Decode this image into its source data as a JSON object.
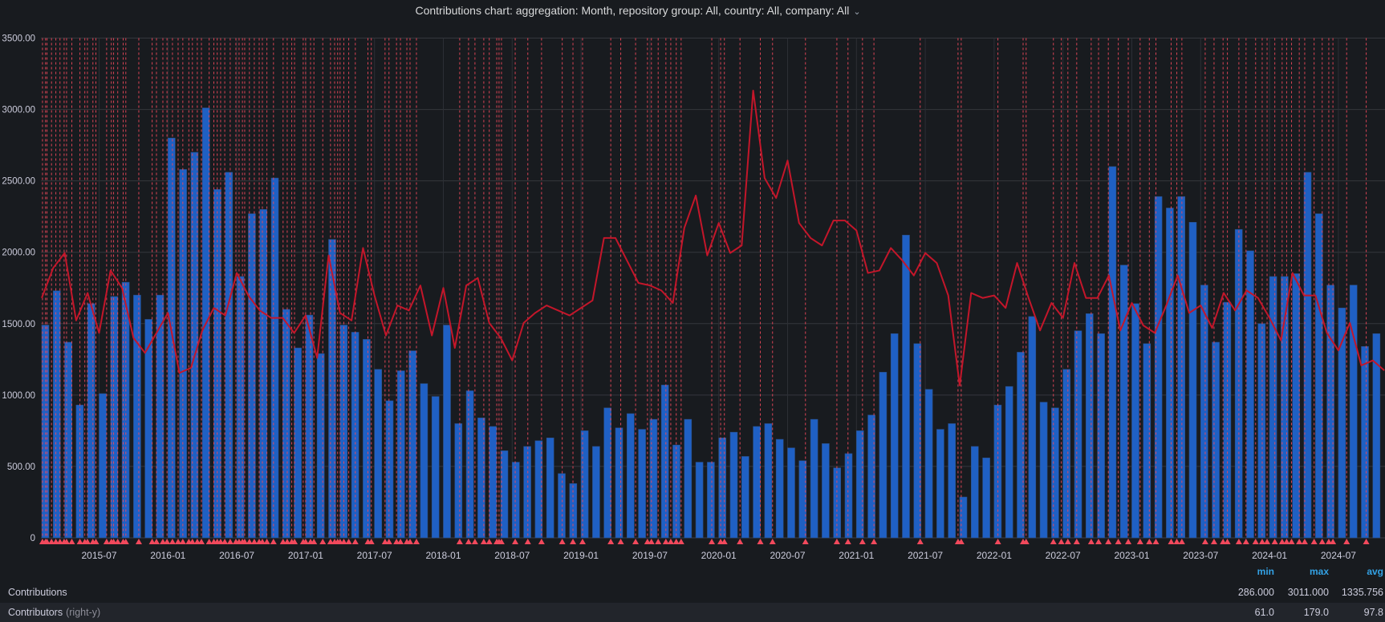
{
  "panel": {
    "title": "Contributions chart: aggregation: Month, repository group: All, country: All, company: All",
    "menu_icon": "chevron-down-icon"
  },
  "colors": {
    "background": "#181b1f",
    "bars": "#1f60c4",
    "line": "#c4162a",
    "annotation": "#f2495c",
    "legend_header": "#33a2e5"
  },
  "legend": {
    "headers": {
      "min": "min",
      "max": "max",
      "avg": "avg"
    },
    "series": [
      {
        "name": "Contributions",
        "suffix": "",
        "min": "286.000",
        "max": "3011.000",
        "avg": "1335.756"
      },
      {
        "name": "Contributors",
        "suffix": "(right-y)",
        "min": "61.0",
        "max": "179.0",
        "avg": "97.8"
      }
    ]
  },
  "chart_data": {
    "type": "bar",
    "title": "Contributions chart: aggregation: Month, repository group: All, country: All, company: All",
    "xlabel": "",
    "ylabel": "",
    "ylim": [
      0,
      3500
    ],
    "y2lim": [
      0,
      200
    ],
    "yticks": [
      "0",
      "500.00",
      "1000.00",
      "1500.00",
      "2000.00",
      "2500.00",
      "3000.00",
      "3500.00"
    ],
    "xticks": [
      "2015-07",
      "2016-01",
      "2016-07",
      "2017-01",
      "2017-07",
      "2018-01",
      "2018-07",
      "2019-01",
      "2019-07",
      "2020-01",
      "2020-07",
      "2021-01",
      "2021-07",
      "2022-01",
      "2022-07",
      "2023-01",
      "2023-07",
      "2024-01",
      "2024-07"
    ],
    "grid": true,
    "legend_position": "bottom",
    "x": [
      "2015-02",
      "2015-03",
      "2015-04",
      "2015-05",
      "2015-06",
      "2015-07",
      "2015-08",
      "2015-09",
      "2015-10",
      "2015-11",
      "2015-12",
      "2016-01",
      "2016-02",
      "2016-03",
      "2016-04",
      "2016-05",
      "2016-06",
      "2016-07",
      "2016-08",
      "2016-09",
      "2016-10",
      "2016-11",
      "2016-12",
      "2017-01",
      "2017-02",
      "2017-03",
      "2017-04",
      "2017-05",
      "2017-06",
      "2017-07",
      "2017-08",
      "2017-09",
      "2017-10",
      "2017-11",
      "2017-12",
      "2018-01",
      "2018-02",
      "2018-03",
      "2018-04",
      "2018-05",
      "2018-06",
      "2018-07",
      "2018-08",
      "2018-09",
      "2018-10",
      "2018-11",
      "2018-12",
      "2019-01",
      "2019-02",
      "2019-03",
      "2019-04",
      "2019-05",
      "2019-06",
      "2019-07",
      "2019-08",
      "2019-09",
      "2019-10",
      "2019-11",
      "2019-12",
      "2020-01",
      "2020-02",
      "2020-03",
      "2020-04",
      "2020-05",
      "2020-06",
      "2020-07",
      "2020-08",
      "2020-09",
      "2020-10",
      "2020-11",
      "2020-12",
      "2021-01",
      "2021-02",
      "2021-03",
      "2021-04",
      "2021-05",
      "2021-06",
      "2021-07",
      "2021-08",
      "2021-09",
      "2021-10",
      "2021-11",
      "2021-12",
      "2022-01",
      "2022-02",
      "2022-03",
      "2022-04",
      "2022-05",
      "2022-06",
      "2022-07",
      "2022-08",
      "2022-09",
      "2022-10",
      "2022-11",
      "2022-12",
      "2023-01",
      "2023-02",
      "2023-03",
      "2023-04",
      "2023-05",
      "2023-06",
      "2023-07",
      "2023-08",
      "2023-09",
      "2023-10",
      "2023-11",
      "2023-12",
      "2024-01",
      "2024-02",
      "2024-03",
      "2024-04",
      "2024-05",
      "2024-06",
      "2024-07",
      "2024-08",
      "2024-09",
      "2024-10",
      "2024-11"
    ],
    "series": [
      {
        "name": "Contributions",
        "type": "bar",
        "axis": "left",
        "values": [
          1490,
          1730,
          1370,
          930,
          1640,
          1010,
          1690,
          1790,
          1700,
          1530,
          1700,
          2800,
          2580,
          2700,
          3011,
          2440,
          2560,
          1830,
          2270,
          2300,
          2520,
          1600,
          1330,
          1560,
          1290,
          2090,
          1490,
          1440,
          1390,
          1180,
          960,
          1170,
          1310,
          1080,
          990,
          1490,
          800,
          1030,
          840,
          780,
          610,
          530,
          640,
          680,
          700,
          450,
          380,
          750,
          640,
          910,
          770,
          870,
          760,
          830,
          1070,
          650,
          830,
          530,
          530,
          700,
          740,
          570,
          780,
          800,
          690,
          630,
          540,
          830,
          660,
          490,
          590,
          750,
          860,
          1160,
          1430,
          2120,
          1360,
          1040,
          760,
          800,
          286,
          640,
          560,
          930,
          1060,
          1300,
          1550,
          950,
          910,
          1180,
          1450,
          1570,
          1430,
          2600,
          1910,
          1640,
          1360,
          2390,
          2310,
          2390,
          2210,
          1770,
          1370,
          1650,
          2160,
          2010,
          1500,
          1830,
          1830,
          1850,
          2560,
          2270,
          1770,
          1610,
          1770,
          1340,
          1430,
          null
        ]
      },
      {
        "name": "Contributors",
        "type": "line",
        "axis": "right",
        "values": [
          96,
          108,
          114,
          87,
          98,
          82,
          107,
          100,
          80,
          74,
          82,
          90,
          66,
          68,
          83,
          92,
          89,
          106,
          97,
          91,
          88,
          88,
          82,
          89,
          72,
          113,
          90,
          87,
          116,
          97,
          81,
          93,
          91,
          101,
          81,
          100,
          76,
          101,
          104,
          86,
          80,
          71,
          86,
          90,
          93,
          91,
          89,
          92,
          95,
          120,
          120,
          111,
          102,
          101,
          99,
          94,
          124,
          137,
          113,
          126,
          114,
          117,
          179,
          144,
          136,
          151,
          126,
          120,
          117,
          127,
          127,
          123,
          106,
          107,
          116,
          111,
          105,
          114,
          110,
          97,
          61,
          98,
          96,
          97,
          92,
          110,
          96,
          83,
          94,
          88,
          110,
          96,
          96,
          105,
          83,
          94,
          85,
          82,
          93,
          105,
          90,
          93,
          84,
          98,
          91,
          99,
          96,
          88,
          79,
          106,
          97,
          97,
          82,
          75,
          86,
          69,
          71,
          67
        ]
      }
    ],
    "annotations": [
      "2015-01-28",
      "2015-02-03",
      "2015-02-11",
      "2015-02-15",
      "2015-02-27",
      "2015-03-08",
      "2015-03-19",
      "2015-03-30",
      "2015-04-06",
      "2015-04-20",
      "2015-05-11",
      "2015-05-24",
      "2015-05-31",
      "2015-06-15",
      "2015-06-23",
      "2015-07-21",
      "2015-08-03",
      "2015-08-09",
      "2015-08-20",
      "2015-09-04",
      "2015-09-11",
      "2015-10-15",
      "2015-11-20",
      "2015-12-01",
      "2015-12-18",
      "2015-12-29",
      "2016-01-13",
      "2016-01-28",
      "2016-02-10",
      "2016-02-26",
      "2016-03-05",
      "2016-03-18",
      "2016-03-29",
      "2016-04-19",
      "2016-05-01",
      "2016-05-10",
      "2016-05-19",
      "2016-05-30",
      "2016-06-14",
      "2016-06-29",
      "2016-07-07",
      "2016-07-16",
      "2016-07-22",
      "2016-08-04",
      "2016-08-17",
      "2016-08-30",
      "2016-09-08",
      "2016-09-20",
      "2016-10-07",
      "2016-11-02",
      "2016-11-13",
      "2016-11-25",
      "2016-12-02",
      "2016-12-25",
      "2017-01-01",
      "2017-01-14",
      "2017-01-23",
      "2017-02-16",
      "2017-03-06",
      "2017-03-17",
      "2017-03-25",
      "2017-04-01",
      "2017-04-11",
      "2017-04-24",
      "2017-05-11",
      "2017-06-14",
      "2017-06-23",
      "2017-07-29",
      "2017-08-09",
      "2017-08-29",
      "2017-09-09",
      "2017-09-26",
      "2017-10-04",
      "2017-10-21",
      "2018-02-14",
      "2018-03-07",
      "2018-03-24",
      "2018-04-17",
      "2018-05-01",
      "2018-05-21",
      "2018-05-27",
      "2018-06-03",
      "2018-07-09",
      "2018-08-12",
      "2018-09-18",
      "2018-11-12",
      "2018-12-10",
      "2019-01-05",
      "2019-03-19",
      "2019-04-15",
      "2019-05-24",
      "2019-06-25",
      "2019-07-05",
      "2019-07-23",
      "2019-08-13",
      "2019-08-26",
      "2019-09-10",
      "2019-09-23",
      "2019-12-13",
      "2020-01-06",
      "2020-01-16",
      "2020-02-27",
      "2020-04-20",
      "2020-05-22",
      "2020-08-18",
      "2020-11-10",
      "2020-12-09",
      "2021-01-17",
      "2021-02-17",
      "2021-06-18",
      "2021-09-27",
      "2021-10-05",
      "2022-01-11",
      "2022-03-17",
      "2022-03-25",
      "2022-06-06",
      "2022-06-27",
      "2022-07-14",
      "2022-08-07",
      "2022-09-15",
      "2022-10-04",
      "2022-10-30",
      "2022-11-26",
      "2022-12-22",
      "2023-01-23",
      "2023-02-17",
      "2023-03-04",
      "2023-04-14",
      "2023-04-29",
      "2023-05-12",
      "2023-07-13",
      "2023-08-06",
      "2023-08-30",
      "2023-09-11",
      "2023-10-11",
      "2023-10-30",
      "2023-11-25",
      "2023-12-12",
      "2023-12-25",
      "2024-01-15",
      "2024-02-04",
      "2024-02-16",
      "2024-02-29",
      "2024-03-19",
      "2024-04-03",
      "2024-04-28",
      "2024-05-19",
      "2024-06-06",
      "2024-06-17",
      "2024-07-23",
      "2024-09-14"
    ]
  }
}
